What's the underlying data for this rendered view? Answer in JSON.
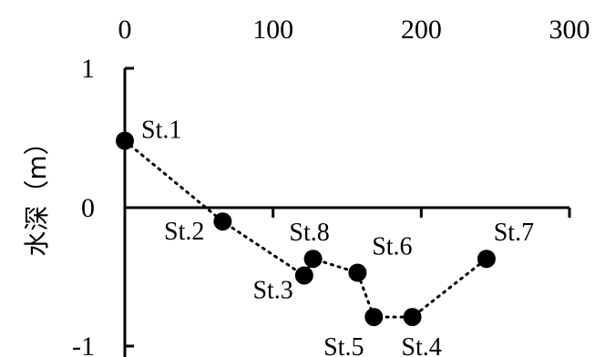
{
  "chart_data": {
    "type": "scatter",
    "title": "",
    "xlabel": "",
    "ylabel": "水深（m）",
    "xlim": [
      0,
      300
    ],
    "ylim": [
      -1,
      1
    ],
    "xticks": [
      "0",
      "100",
      "200",
      "300"
    ],
    "yticks": [
      "1",
      "0",
      "-1"
    ],
    "grid": false,
    "connector_line": "dotted",
    "connector_order": [
      "St.1",
      "St.2",
      "St.3",
      "St.8",
      "St.6",
      "St.5",
      "St.4",
      "St.7"
    ],
    "points": [
      {
        "label": "St.1",
        "x": 0,
        "y": 0.48
      },
      {
        "label": "St.2",
        "x": 66,
        "y": -0.1
      },
      {
        "label": "St.3",
        "x": 121,
        "y": -0.49
      },
      {
        "label": "St.8",
        "x": 127,
        "y": -0.37
      },
      {
        "label": "St.6",
        "x": 157,
        "y": -0.47
      },
      {
        "label": "St.5",
        "x": 168,
        "y": -0.79
      },
      {
        "label": "St.4",
        "x": 194,
        "y": -0.79
      },
      {
        "label": "St.7",
        "x": 244,
        "y": -0.37
      }
    ]
  }
}
